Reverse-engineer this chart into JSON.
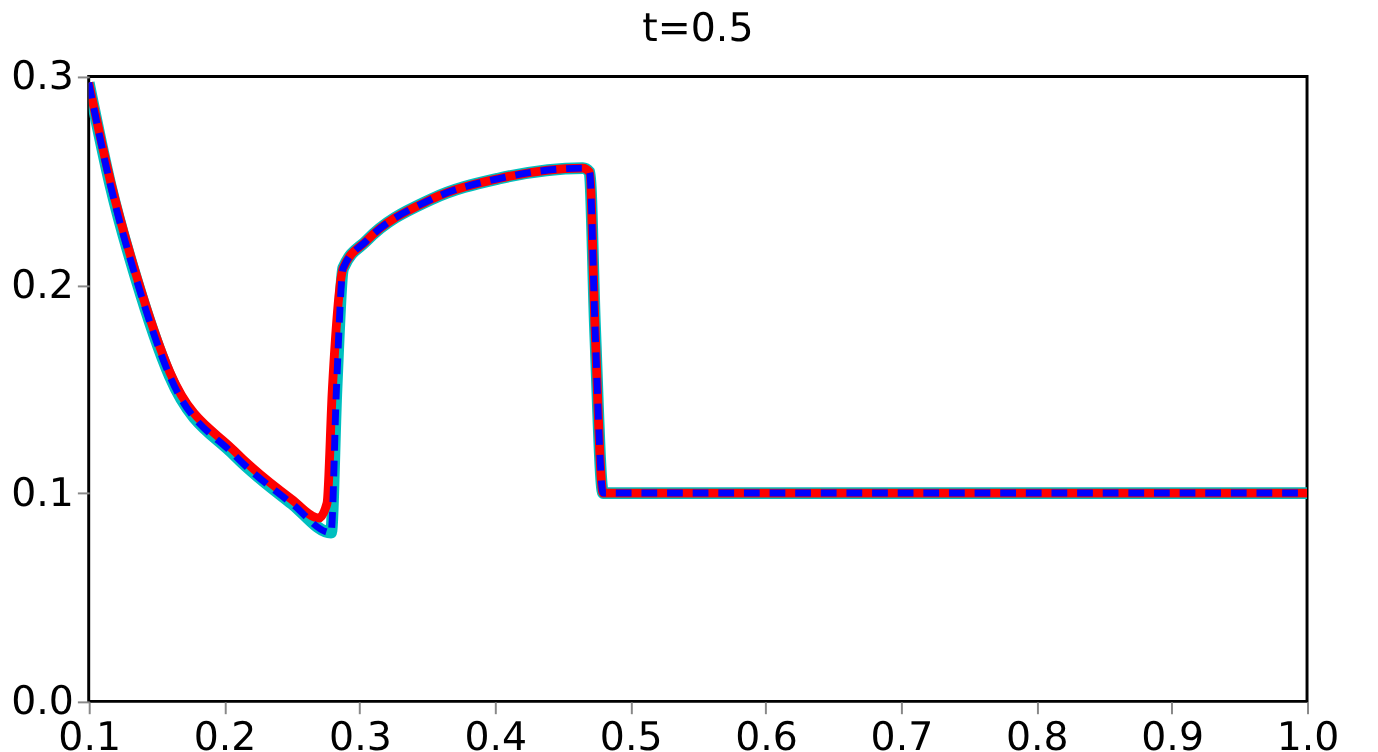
{
  "chart_data": {
    "type": "line",
    "title": "t=0.5",
    "xlim": [
      0.1,
      1.0
    ],
    "ylim": [
      0.0,
      0.3
    ],
    "xticks": [
      0.1,
      0.2,
      0.3,
      0.4,
      0.5,
      0.6,
      0.7,
      0.8,
      0.9,
      {
        "value": 1.0,
        "label": "1.0"
      }
    ],
    "yticks": [
      {
        "value": 0.0,
        "label": "0.0"
      },
      0.1,
      0.2,
      0.3
    ],
    "grid": false,
    "series": [
      {
        "color": "#00bfbf",
        "line_style": "solid",
        "x": [
          0.1,
          0.116,
          0.135,
          0.16,
          0.208,
          0.25,
          0.279,
          0.283,
          0.288,
          0.305,
          0.353,
          0.403,
          0.465,
          0.47,
          0.474,
          0.48,
          0.5,
          1.0
        ],
        "values": [
          0.297,
          0.248,
          0.203,
          0.156,
          0.118,
          0.095,
          0.081,
          0.15,
          0.208,
          0.221,
          0.241,
          0.251,
          0.256,
          0.254,
          0.18,
          0.1,
          0.1,
          0.1
        ]
      },
      {
        "color": "#ff0000",
        "line_style": "solid",
        "x": [
          0.1,
          0.116,
          0.135,
          0.16,
          0.208,
          0.25,
          0.27,
          0.276,
          0.28,
          0.288,
          0.305,
          0.353,
          0.403,
          0.465,
          0.47,
          0.474,
          0.48,
          0.5,
          1.0
        ],
        "values": [
          0.297,
          0.25,
          0.205,
          0.158,
          0.12,
          0.097,
          0.088,
          0.095,
          0.15,
          0.208,
          0.221,
          0.241,
          0.251,
          0.256,
          0.254,
          0.18,
          0.1,
          0.1,
          0.1
        ]
      },
      {
        "color": "#0000ff",
        "line_style": "dashed",
        "x": [
          0.1,
          0.116,
          0.135,
          0.16,
          0.208,
          0.25,
          0.279,
          0.283,
          0.288,
          0.305,
          0.353,
          0.403,
          0.465,
          0.47,
          0.474,
          0.48,
          0.5,
          1.0
        ],
        "values": [
          0.297,
          0.248,
          0.203,
          0.156,
          0.118,
          0.095,
          0.081,
          0.15,
          0.208,
          0.221,
          0.241,
          0.251,
          0.256,
          0.254,
          0.18,
          0.1,
          0.1,
          0.1
        ]
      }
    ]
  }
}
